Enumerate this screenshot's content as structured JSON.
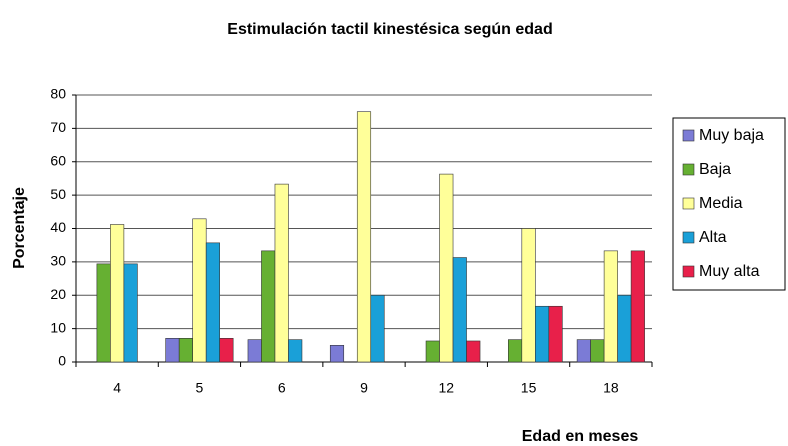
{
  "chart_data": {
    "type": "bar",
    "title": "Estimulación tactil kinestésica según edad",
    "x_label": "Edad en meses",
    "y_label": "Porcentaje",
    "categories": [
      "4",
      "5",
      "6",
      "9",
      "12",
      "15",
      "18"
    ],
    "series": [
      {
        "name": "Muy baja",
        "color": "#7b7bd6",
        "values": [
          0,
          7.1,
          6.7,
          5,
          0,
          0,
          6.7
        ]
      },
      {
        "name": "Baja",
        "color": "#66b032",
        "values": [
          29.4,
          7.1,
          33.3,
          0,
          6.3,
          6.7,
          6.7
        ]
      },
      {
        "name": "Media",
        "color": "#ffff99",
        "values": [
          41.2,
          42.9,
          53.3,
          75,
          56.3,
          40,
          33.3
        ]
      },
      {
        "name": "Alta",
        "color": "#1aa0d8",
        "values": [
          29.4,
          35.7,
          6.7,
          20,
          31.3,
          16.7,
          20
        ]
      },
      {
        "name": "Muy alta",
        "color": "#e8204a",
        "values": [
          0,
          7.1,
          0,
          0,
          6.3,
          16.7,
          33.3
        ]
      }
    ],
    "ylim": [
      0,
      80
    ],
    "yticks": [
      0,
      10,
      20,
      30,
      40,
      50,
      60,
      70,
      80
    ],
    "grid": true,
    "legend": "right"
  }
}
